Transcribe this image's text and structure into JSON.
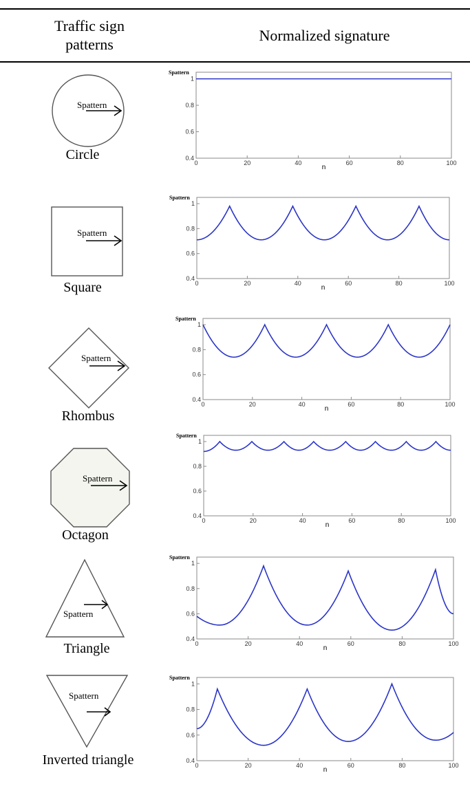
{
  "header": {
    "left_line1": "Traffic sign",
    "left_line2": "patterns",
    "right": "Normalized signature"
  },
  "arrow_label": "Spattern",
  "shapes": [
    {
      "label": "Circle",
      "icon": "circle-icon"
    },
    {
      "label": "Square",
      "icon": "square-icon"
    },
    {
      "label": "Rhombus",
      "icon": "rhombus-icon"
    },
    {
      "label": "Octagon",
      "icon": "octagon-icon"
    },
    {
      "label": "Triangle",
      "icon": "triangle-icon"
    },
    {
      "label": "Inverted triangle",
      "icon": "inverted-triangle-icon"
    }
  ],
  "colors": {
    "series": "#2a34c8",
    "frame": "#8a8a8a"
  },
  "chart_data": [
    {
      "type": "line",
      "ylabel": "Spattern",
      "xlabel": "n",
      "xlim": [
        0,
        100
      ],
      "ylim": [
        0.4,
        1.05
      ],
      "xticks": [
        0,
        20,
        40,
        60,
        80,
        100
      ],
      "yticks": [
        0.4,
        0.6,
        0.8,
        1
      ],
      "series": [
        {
          "x": [
            0,
            100
          ],
          "y": [
            1,
            1
          ]
        }
      ]
    },
    {
      "type": "line",
      "ylabel": "Spattern",
      "xlabel": "n",
      "xlim": [
        0,
        100
      ],
      "ylim": [
        0.4,
        1.05
      ],
      "xticks": [
        0,
        20,
        40,
        60,
        80,
        100
      ],
      "yticks": [
        0.4,
        0.6,
        0.8,
        1
      ],
      "series": [
        {
          "x": [
            0,
            13,
            25.5,
            38,
            50.5,
            63,
            75.5,
            88,
            100
          ],
          "y": [
            0.71,
            0.98,
            0.71,
            0.98,
            0.71,
            0.98,
            0.71,
            0.98,
            0.71
          ]
        }
      ]
    },
    {
      "type": "line",
      "ylabel": "Spattern",
      "xlabel": "n",
      "xlim": [
        0,
        100
      ],
      "ylim": [
        0.4,
        1.05
      ],
      "xticks": [
        0,
        20,
        40,
        60,
        80,
        100
      ],
      "yticks": [
        0.4,
        0.6,
        0.8,
        1
      ],
      "series": [
        {
          "x": [
            0,
            12.5,
            25,
            37.5,
            50,
            62.5,
            75,
            87.5,
            100
          ],
          "y": [
            1,
            0.74,
            1,
            0.74,
            1,
            0.74,
            1,
            0.74,
            1
          ]
        }
      ]
    },
    {
      "type": "line",
      "ylabel": "Spattern",
      "xlabel": "n",
      "xlim": [
        0,
        100
      ],
      "ylim": [
        0.4,
        1.05
      ],
      "xticks": [
        0,
        20,
        40,
        60,
        80,
        100
      ],
      "yticks": [
        0.4,
        0.6,
        0.8,
        1
      ],
      "series": [
        {
          "x": [
            0,
            6.5,
            13,
            19.5,
            26,
            32.5,
            38.5,
            44.5,
            51,
            57.5,
            63.5,
            69.5,
            76,
            82,
            88,
            94,
            100
          ],
          "y": [
            0.92,
            1,
            0.93,
            1,
            0.93,
            1,
            0.93,
            1,
            0.93,
            1,
            0.93,
            1,
            0.93,
            1,
            0.93,
            1,
            0.93
          ]
        }
      ]
    },
    {
      "type": "line",
      "ylabel": "Spattern",
      "xlabel": "n",
      "xlim": [
        0,
        100
      ],
      "ylim": [
        0.4,
        1.05
      ],
      "xticks": [
        0,
        20,
        40,
        60,
        80,
        100
      ],
      "yticks": [
        0.4,
        0.6,
        0.8,
        1
      ],
      "series": [
        {
          "x": [
            0,
            9,
            26,
            43,
            59,
            76,
            93,
            100
          ],
          "y": [
            0.58,
            0.51,
            0.98,
            0.51,
            0.94,
            0.47,
            0.95,
            0.6
          ]
        }
      ]
    },
    {
      "type": "line",
      "ylabel": "Spattern",
      "xlabel": "n",
      "xlim": [
        0,
        100
      ],
      "ylim": [
        0.4,
        1.05
      ],
      "xticks": [
        0,
        20,
        40,
        60,
        80,
        100
      ],
      "yticks": [
        0.4,
        0.6,
        0.8,
        1
      ],
      "series": [
        {
          "x": [
            0,
            8,
            26,
            43,
            59,
            76,
            93,
            100
          ],
          "y": [
            0.65,
            0.96,
            0.52,
            0.96,
            0.55,
            1.0,
            0.56,
            0.62
          ]
        }
      ]
    }
  ]
}
